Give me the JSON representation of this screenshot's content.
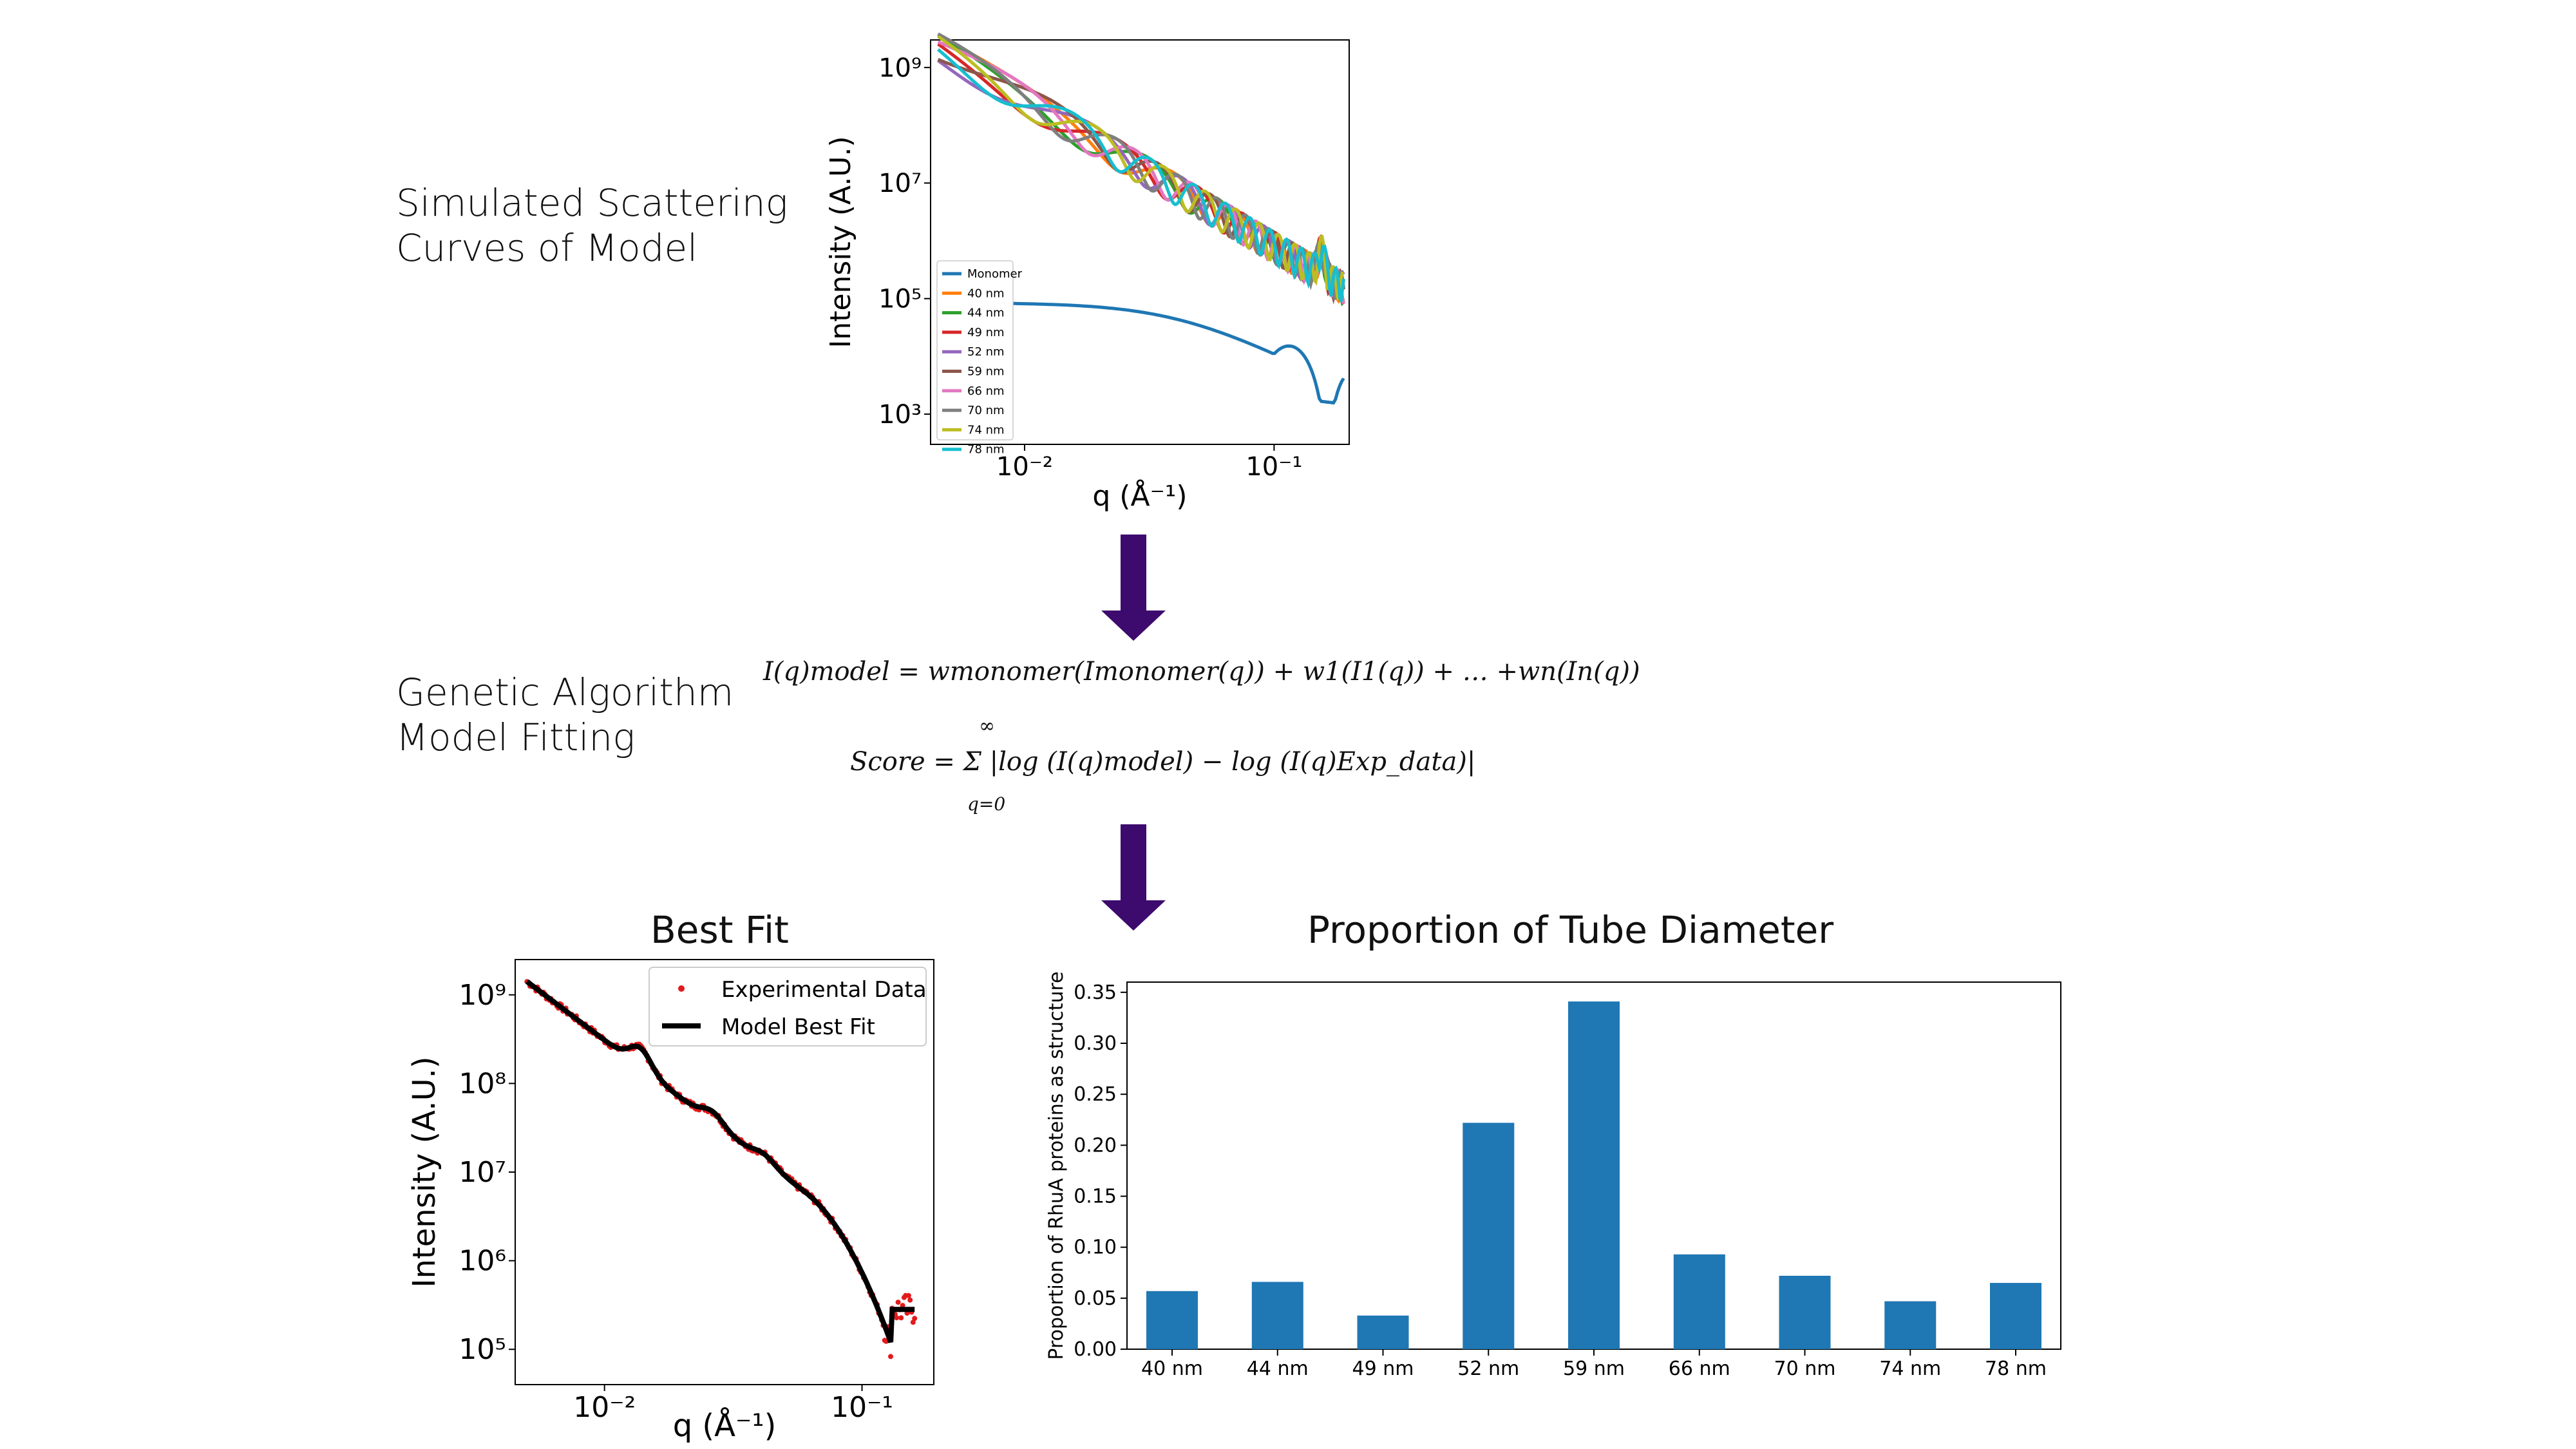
{
  "steps": {
    "simulated": "Simulated Scattering\nCurves of Model",
    "genetic": "Genetic Algorithm\nModel Fitting"
  },
  "formula": {
    "model": "I(q)model = wmonomer(Imonomer(q)) + w1(I1(q)) + … +wn(In(q))",
    "score": "Score = Σ |log (I(q)model) − log (I(q)Exp_data)|",
    "sum_upper": "∞",
    "sum_lower": "q=0"
  },
  "arrow_color": "#3d0a6e",
  "chart_data": [
    {
      "type": "line",
      "title": "",
      "xlabel": "q (Å⁻¹)",
      "ylabel": "Intensity (A.U.)",
      "xscale": "log",
      "yscale": "log",
      "xlim": [
        0.0042,
        0.2
      ],
      "ylim": [
        300,
        3000000000
      ],
      "xticks": [
        "10⁻²",
        "10⁻¹"
      ],
      "yticks": [
        "10⁹",
        "10⁷",
        "10⁵",
        "10³"
      ],
      "legend_position": "lower-left",
      "series": [
        {
          "name": "Monomer",
          "color": "#1f77b4"
        },
        {
          "name": "40 nm",
          "color": "#ff7f0e"
        },
        {
          "name": "44 nm",
          "color": "#2ca02c"
        },
        {
          "name": "49 nm",
          "color": "#d62728"
        },
        {
          "name": "52 nm",
          "color": "#9467bd"
        },
        {
          "name": "59 nm",
          "color": "#8c564b"
        },
        {
          "name": "66 nm",
          "color": "#e377c2"
        },
        {
          "name": "70 nm",
          "color": "#7f7f7f"
        },
        {
          "name": "74 nm",
          "color": "#bcbd22"
        },
        {
          "name": "78 nm",
          "color": "#17becf"
        }
      ]
    },
    {
      "type": "scatter",
      "title": "Best Fit",
      "xlabel": "q (Å⁻¹)",
      "ylabel": "Intensity (A.U.)",
      "xscale": "log",
      "yscale": "log",
      "xlim": [
        0.0045,
        0.19
      ],
      "ylim": [
        40000,
        2500000000
      ],
      "xticks": [
        "10⁻²",
        "10⁻¹"
      ],
      "yticks": [
        "10⁹",
        "10⁸",
        "10⁷",
        "10⁶",
        "10⁵"
      ],
      "legend_position": "top-right",
      "series": [
        {
          "name": "Experimental Data",
          "color": "#e31a1c"
        },
        {
          "name": "Model Best Fit",
          "color": "#000000"
        }
      ]
    },
    {
      "type": "bar",
      "title": "Proportion of Tube Diameter",
      "xlabel": "",
      "ylabel": "Proportion of RhuA proteins as structure",
      "ylim": [
        0,
        0.36
      ],
      "yticks": [
        "0.00",
        "0.05",
        "0.10",
        "0.15",
        "0.20",
        "0.25",
        "0.30",
        "0.35"
      ],
      "categories": [
        "40 nm",
        "44 nm",
        "49 nm",
        "52 nm",
        "59 nm",
        "66 nm",
        "70 nm",
        "74 nm",
        "78 nm"
      ],
      "values": [
        0.057,
        0.066,
        0.033,
        0.222,
        0.341,
        0.093,
        0.072,
        0.047,
        0.065
      ],
      "color": "#1f77b4"
    }
  ]
}
